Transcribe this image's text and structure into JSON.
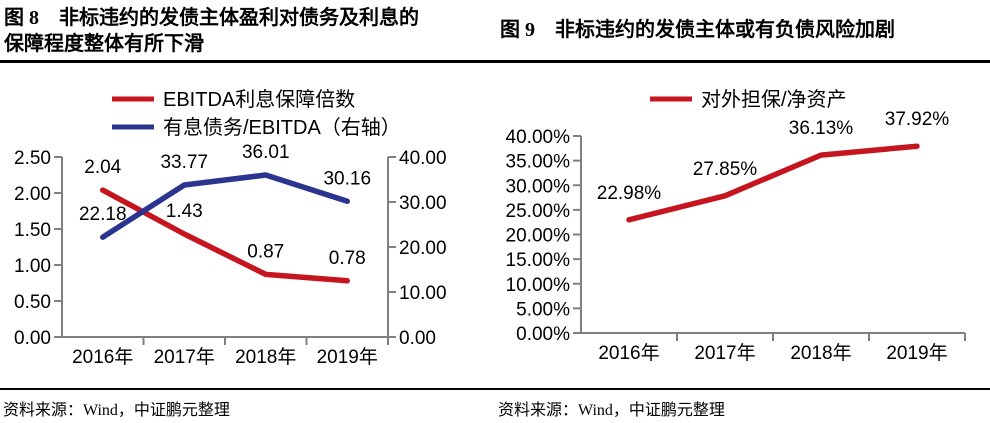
{
  "figures": [
    {
      "id": "figure-8",
      "title": "图 8　非标违约的发债主体盈利对债务及利息的保障程度整体有所下滑",
      "source": "资料来源：Wind，中证鹏元整理"
    },
    {
      "id": "figure-9",
      "title": "图 9　非标违约的发债主体或有负债风险加剧",
      "source": "资料来源：Wind，中证鹏元整理"
    }
  ],
  "colors": {
    "red": "#c5151f",
    "blue": "#2b3590",
    "axis": "#808080",
    "text": "#000000"
  },
  "chart_data": [
    {
      "type": "line",
      "title": "图 8　非标违约的发债主体盈利对债务及利息的保障程度整体有所下滑",
      "categories": [
        "2016年",
        "2017年",
        "2018年",
        "2019年"
      ],
      "series": [
        {
          "name": "EBITDA利息保障倍数",
          "color": "#c5151f",
          "axis": "left",
          "values": [
            2.04,
            1.43,
            0.87,
            0.78
          ],
          "point_labels": [
            "2.04",
            "1.43",
            "0.87",
            "0.78"
          ]
        },
        {
          "name": "有息债务/EBITDA（右轴）",
          "color": "#2b3590",
          "axis": "right",
          "values": [
            22.18,
            33.77,
            36.01,
            30.16
          ],
          "point_labels": [
            "22.18",
            "33.77",
            "36.01",
            "30.16"
          ]
        }
      ],
      "left_axis": {
        "range": [
          0,
          2.5
        ],
        "ticks": [
          "2.50",
          "2.00",
          "1.50",
          "1.00",
          "0.50",
          "0.00"
        ]
      },
      "right_axis": {
        "range": [
          0,
          40
        ],
        "ticks": [
          "40.00",
          "30.00",
          "20.00",
          "10.00",
          "0.00"
        ]
      },
      "legend_position": "top",
      "grid": false
    },
    {
      "type": "line",
      "title": "图 9　非标违约的发债主体或有负债风险加剧",
      "categories": [
        "2016年",
        "2017年",
        "2018年",
        "2019年"
      ],
      "series": [
        {
          "name": "对外担保/净资产",
          "color": "#c5151f",
          "axis": "left",
          "values": [
            22.98,
            27.85,
            36.13,
            37.92
          ],
          "point_labels": [
            "22.98%",
            "27.85%",
            "36.13%",
            "37.92%"
          ]
        }
      ],
      "left_axis": {
        "range": [
          0,
          40
        ],
        "ticks": [
          "40.00%",
          "35.00%",
          "30.00%",
          "25.00%",
          "20.00%",
          "15.00%",
          "10.00%",
          "5.00%",
          "0.00%"
        ]
      },
      "legend_position": "top",
      "grid": false
    }
  ]
}
